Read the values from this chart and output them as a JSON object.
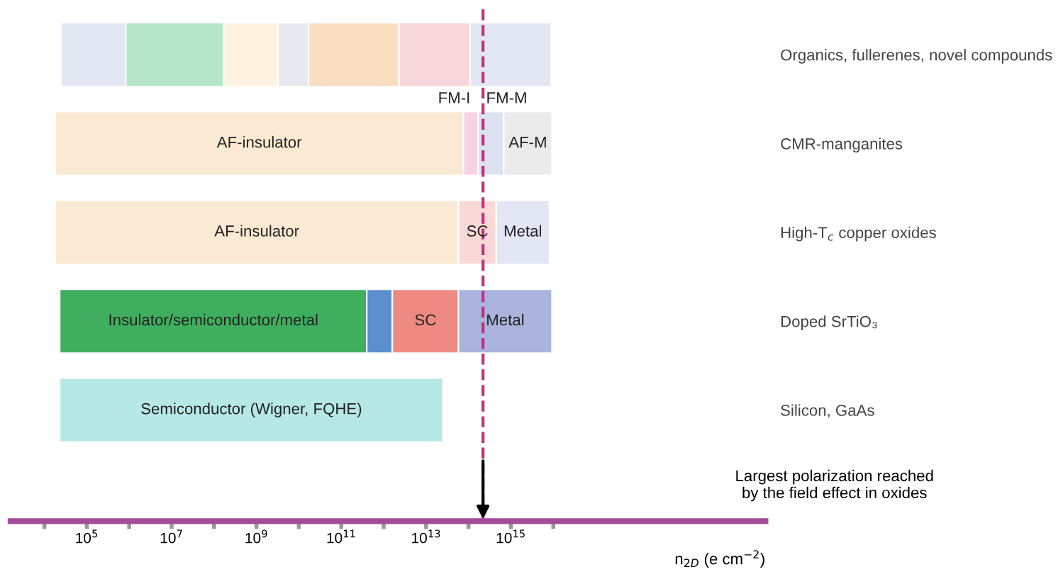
{
  "chart_data": {
    "type": "bar",
    "orientation": "horizontal",
    "log": "x",
    "categories": [
      "Organics, fullerenes, novel compounds",
      "CMR-manganites",
      "High-T$_{c}$ copper oxides",
      "Doped SrTiO₃",
      "Silicon, GaAs"
    ],
    "series": [
      {
        "colors": [
          "#e3e6f3",
          "#fbead3",
          "#fbead3",
          "#3fae5f",
          "#b6e8e6"
        ],
        "base": [
          25000.0,
          18000.0,
          18000.0,
          23000.0,
          23000.0
        ],
        "values": [
          800000.0,
          76000000000000.0,
          58000000000000.0,
          400000000000.0,
          25000000000000.0
        ],
        "value_labels": [
          null,
          "AF-insulator",
          "AF-insulator",
          "Insulator/semiconductor/metal",
          "Semiconductor (Wigner, FQHE)"
        ]
      },
      {
        "colors": [
          "#b5e6c9",
          "#f6d2e4",
          "#f8d9d7",
          "#5b8fd0",
          "#ffffff"
        ],
        "base": [
          830000.0,
          76000000000000.0,
          58000000000000.0,
          400000000000.0,
          null
        ],
        "values": [
          169000000.0,
          94000000000000.0,
          392000000000000.0,
          1200000000000.0,
          null
        ],
        "value_labels": [
          null,
          "FM-I",
          "SC",
          null,
          null
        ]
      },
      {
        "colors": [
          "#fdf3e0",
          "#dde2f0",
          "#e3e6f3",
          "#ef8a83",
          "#ffffff"
        ],
        "base": [
          170000000.0,
          170000000000000.0,
          450000000000000.0,
          1600000000000.0,
          null
        ],
        "values": [
          3030000000.0,
          510000000000000.0,
          7650000000000000.0,
          56400000000000.0,
          null
        ],
        "value_labels": [
          null,
          "FM-M",
          "Metal",
          "SC",
          null
        ]
      },
      {
        "colors": [
          "#e8e9ee",
          "#ebebeb",
          "#ffffff",
          "#aab4dc",
          "#ffffff"
        ],
        "base": [
          3200000000.0,
          680000000000000.0,
          null,
          58000000000000.0,
          null
        ],
        "values": [
          13800000000.0,
          8620000000000000.0,
          null,
          9242000000000000.0,
          null
        ],
        "value_labels": [
          null,
          "AF-M",
          null,
          "Metal",
          null
        ]
      },
      {
        "colors": [
          "#f9dfc0",
          "#ffffff",
          "#ffffff",
          "#ffffff",
          "#ffffff"
        ],
        "base": [
          17000000000.0,
          null,
          null,
          null,
          null
        ],
        "values": [
          2280000000000.0,
          null,
          null,
          null,
          null
        ]
      },
      {
        "colors": [
          "#f7d7da",
          "#ffffff",
          "#ffffff",
          "#ffffff",
          "#ffffff"
        ],
        "base": [
          2300000000000.0,
          null,
          null,
          null,
          null
        ],
        "values": [
          107700000000000.0,
          null,
          null,
          null,
          null
        ]
      },
      {
        "colors": [
          "#e3e6f3",
          "#ffffff",
          "#ffffff",
          "#ffffff",
          "#ffffff"
        ],
        "base": [
          110000000000000.0,
          null,
          null,
          null,
          null
        ],
        "values": [
          8790000000000000.0,
          null,
          null,
          null,
          null
        ]
      }
    ],
    "xlim": [
      1600.0,
      1e+21
    ],
    "xticks": [
      {
        "value": 10000.0,
        "label": null
      },
      {
        "value": 100000.0,
        "label": "10$^{5}$"
      },
      {
        "value": 1000000.0,
        "label": null
      },
      {
        "value": 10000000.0,
        "label": "10$^{7}$"
      },
      {
        "value": 100000000.0,
        "label": null
      },
      {
        "value": 1000000000.0,
        "label": "10$^{9}$"
      },
      {
        "value": 10000000000.0,
        "label": null
      },
      {
        "value": 100000000000.0,
        "label": "10$^{11}$"
      },
      {
        "value": 1000000000000.0,
        "label": null
      },
      {
        "value": 10000000000000.0,
        "label": "10$^{13}$"
      },
      {
        "value": 100000000000000.0,
        "label": null
      },
      {
        "value": 1000000000000000.0,
        "label": "10$^{15}$"
      },
      {
        "value": 1e+16,
        "label": null
      }
    ],
    "xlabel": "n$_{2D}$ (e cm$^{−2}$)",
    "ref_lines": [
      {
        "axis": "x",
        "value": 220000000000000.0,
        "color": "#c0307f",
        "line_style": "dashed"
      }
    ],
    "annotations": [
      "Largest polarization reached\nby the field effect in oxides"
    ],
    "grid": false,
    "legend": false
  }
}
